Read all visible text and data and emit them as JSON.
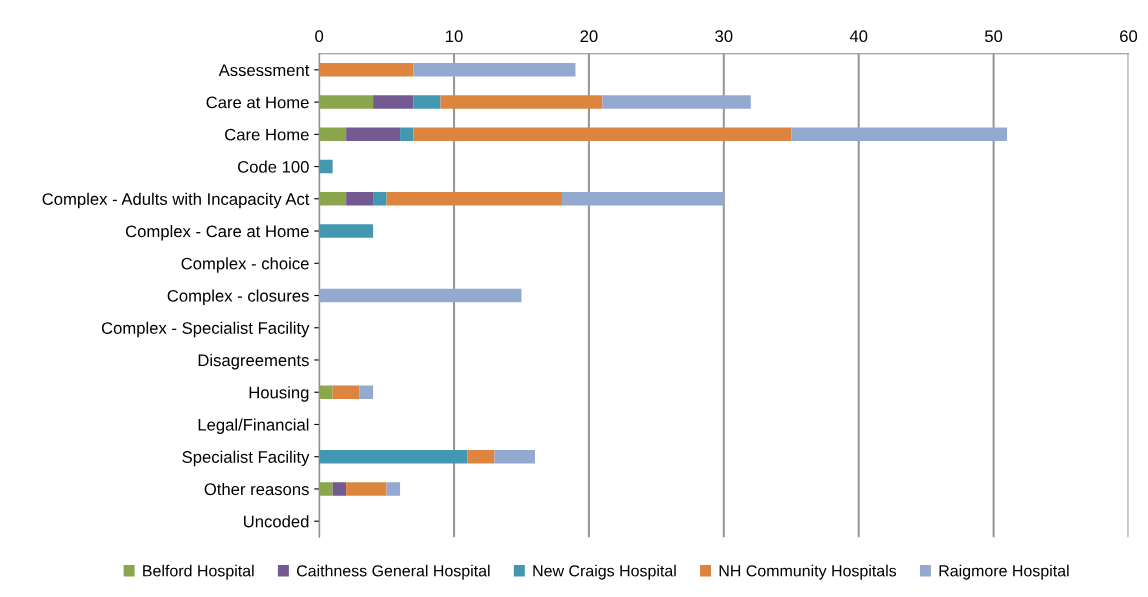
{
  "chart_data": {
    "type": "bar",
    "orientation": "horizontal",
    "stacked": true,
    "categories": [
      "Assessment",
      "Care at Home",
      "Care Home",
      "Code 100",
      "Complex - Adults with Incapacity Act",
      "Complex - Care at Home",
      "Complex - choice",
      "Complex - closures",
      "Complex - Specialist Facility",
      "Disagreements",
      "Housing",
      "Legal/Financial",
      "Specialist Facility",
      "Other reasons",
      "Uncoded"
    ],
    "series": [
      {
        "name": "Belford Hospital",
        "color": "#8ba64d",
        "values": [
          0,
          4,
          2,
          0,
          2,
          0,
          0,
          0,
          0,
          0,
          1,
          0,
          0,
          1,
          0
        ]
      },
      {
        "name": "Caithness General Hospital",
        "color": "#735a91",
        "values": [
          0,
          3,
          4,
          0,
          2,
          0,
          0,
          0,
          0,
          0,
          0,
          0,
          0,
          1,
          0
        ]
      },
      {
        "name": "New Craigs Hospital",
        "color": "#4298b0",
        "values": [
          0,
          2,
          1,
          1,
          1,
          4,
          0,
          0,
          0,
          0,
          0,
          0,
          11,
          0,
          0
        ]
      },
      {
        "name": "NH Community Hospitals",
        "color": "#dd843e",
        "values": [
          7,
          12,
          28,
          0,
          13,
          0,
          0,
          0,
          0,
          0,
          2,
          0,
          2,
          3,
          0
        ]
      },
      {
        "name": "Raigmore Hospital",
        "color": "#94a9d0",
        "values": [
          12,
          11,
          16,
          0,
          12,
          0,
          0,
          15,
          0,
          0,
          1,
          0,
          3,
          1,
          0
        ]
      }
    ],
    "xlim": [
      0,
      60
    ],
    "xticks": [
      0,
      10,
      20,
      30,
      40,
      50,
      60
    ],
    "grid": "x",
    "legend": "bottom"
  }
}
